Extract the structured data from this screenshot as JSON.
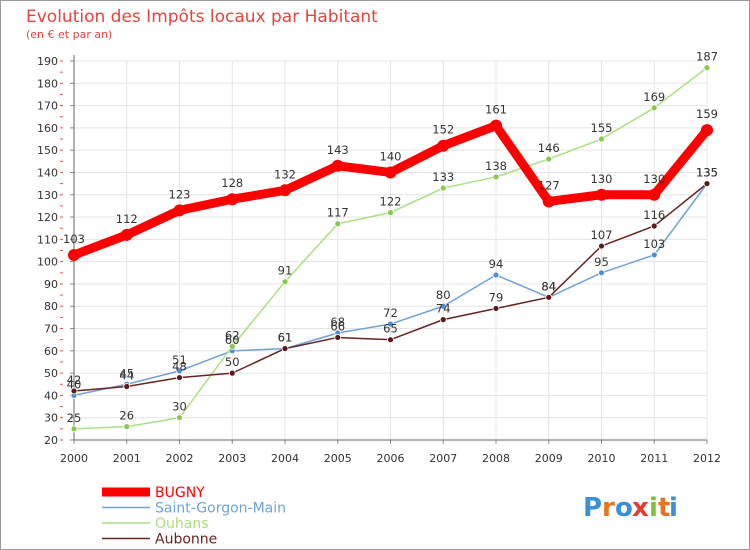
{
  "chart_data": {
    "type": "line",
    "title": "Evolution des Impôts locaux par Habitant",
    "subtitle": "(en € et par an)",
    "xlabel": "",
    "ylabel": "",
    "x": [
      "2000",
      "2001",
      "2002",
      "2003",
      "2004",
      "2005",
      "2006",
      "2007",
      "2008",
      "2009",
      "2010",
      "2011",
      "2012"
    ],
    "ylim": [
      20,
      190
    ],
    "yticks": [
      20,
      30,
      40,
      50,
      60,
      70,
      80,
      90,
      100,
      110,
      120,
      130,
      140,
      150,
      160,
      170,
      180,
      190
    ],
    "grid": true,
    "legend_position": "bottom-left",
    "series": [
      {
        "name": "BUGNY",
        "color": "#ff0000",
        "marker_color": "#ff0000",
        "values": [
          103,
          112,
          123,
          128,
          132,
          143,
          140,
          152,
          161,
          127,
          130,
          130,
          159
        ]
      },
      {
        "name": "Saint-Gorgon-Main",
        "color": "#6fa2d6",
        "marker_color": "#4f8fd4",
        "values": [
          40,
          45,
          51,
          60,
          61,
          68,
          72,
          80,
          94,
          84,
          95,
          103,
          135
        ]
      },
      {
        "name": "Ouhans",
        "color": "#a8e07e",
        "marker_color": "#86c94c",
        "values": [
          25,
          26,
          30,
          62,
          91,
          117,
          122,
          133,
          138,
          146,
          155,
          169,
          187
        ]
      },
      {
        "name": "Aubonne",
        "color": "#6b2222",
        "marker_color": "#5a1a1a",
        "values": [
          42,
          44,
          48,
          50,
          61,
          66,
          65,
          74,
          79,
          84,
          107,
          116,
          135
        ]
      }
    ]
  },
  "logo": {
    "text": "Proxiti",
    "letters": [
      "P",
      "r",
      "o",
      "x",
      "i",
      "t",
      "i"
    ]
  }
}
